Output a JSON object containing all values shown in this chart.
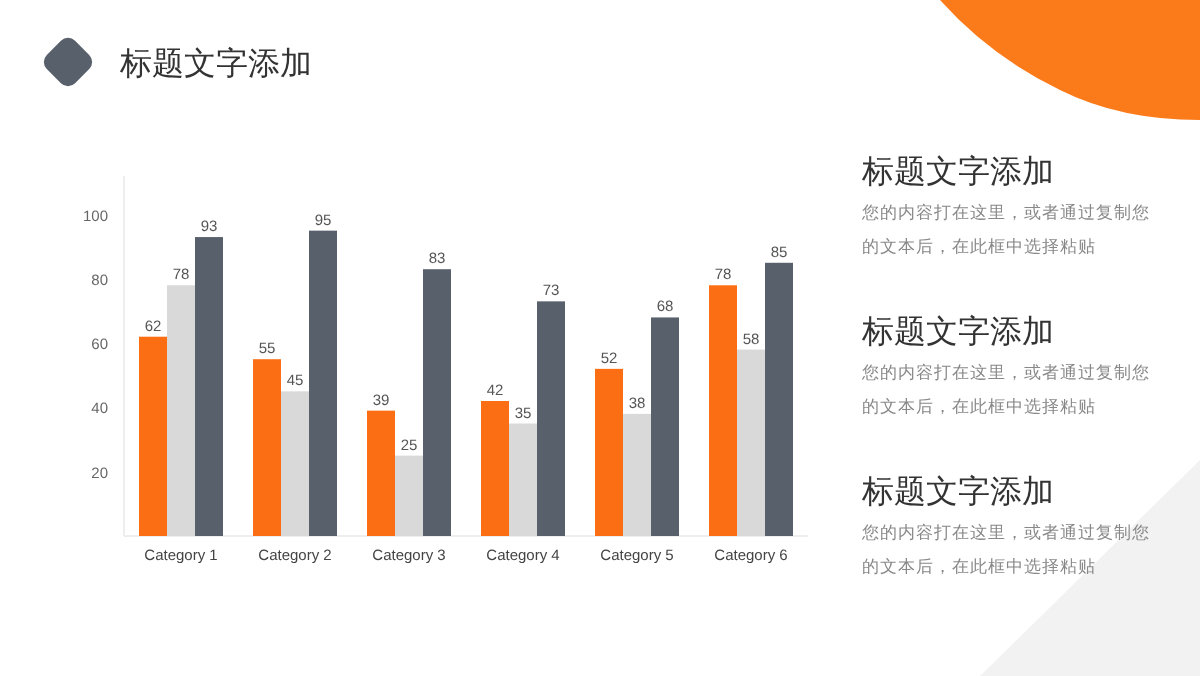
{
  "chart_data": [
    {
      "type": "bar",
      "title": "标题文字添加",
      "categories": [
        "Category 1",
        "Category 2",
        "Category 3",
        "Category 4",
        "Category 5",
        "Category 6"
      ],
      "series": [
        {
          "color": "#fb6e14",
          "values": [
            62,
            55,
            39,
            42,
            52,
            78
          ]
        },
        {
          "color": "#d9d9d9",
          "values": [
            78,
            45,
            25,
            35,
            38,
            58
          ]
        },
        {
          "color": "#57606b",
          "values": [
            93,
            95,
            83,
            73,
            68,
            85
          ]
        }
      ],
      "ylim": [
        0,
        112
      ],
      "yticks": [
        20,
        40,
        60,
        80,
        100
      ],
      "data_labels": true,
      "grid": false
    },
    {
      "type": "other",
      "annotations": [
        "标题文字添加",
        "您的内容打在这里，或者通过复制您的文本后，在此框中选择粘贴",
        "标题文字添加",
        "您的内容打在这里，或者通过复制您的文本后，在此框中选择粘贴",
        "标题文字添加",
        "您的内容打在这里，或者通过复制您的文本后，在此框中选择粘贴"
      ]
    }
  ]
}
